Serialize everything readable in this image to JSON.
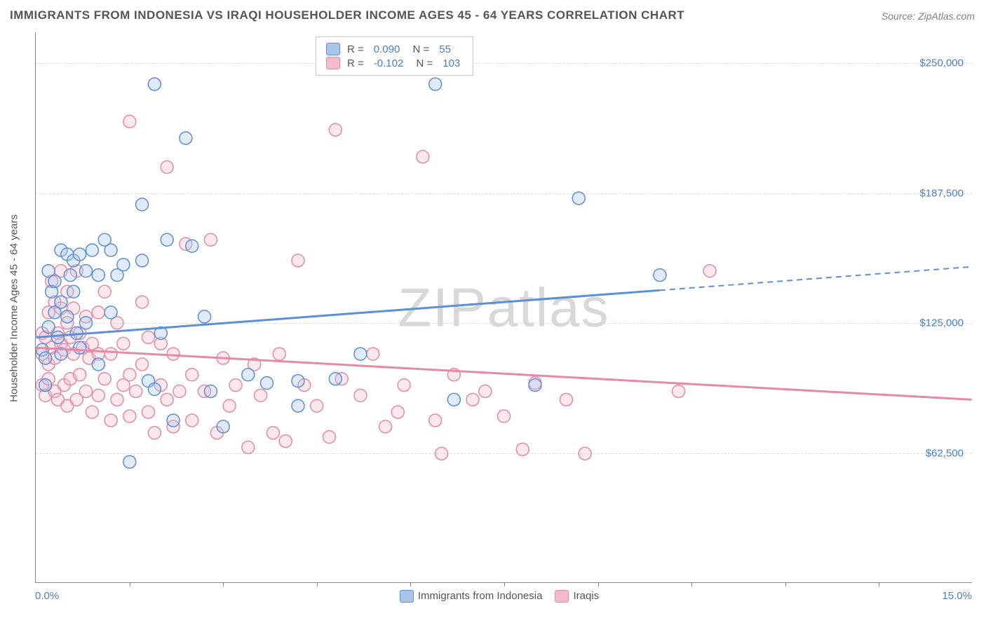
{
  "title": "IMMIGRANTS FROM INDONESIA VS IRAQI HOUSEHOLDER INCOME AGES 45 - 64 YEARS CORRELATION CHART",
  "source": "Source: ZipAtlas.com",
  "watermark": "ZIPatlas",
  "chart": {
    "type": "scatter",
    "y_axis": {
      "label": "Householder Income Ages 45 - 64 years",
      "min": 0,
      "max": 265000,
      "ticks": [
        62500,
        125000,
        187500,
        250000
      ],
      "tick_labels": [
        "$62,500",
        "$125,000",
        "$187,500",
        "$250,000"
      ],
      "label_color": "#4a7ec8",
      "label_fontsize": 15
    },
    "x_axis": {
      "min": 0,
      "max": 15.0,
      "min_label": "0.0%",
      "max_label": "15.0%",
      "tick_positions": [
        1.5,
        3.0,
        4.5,
        6.0,
        7.5,
        9.0,
        10.5,
        12.0,
        13.5
      ],
      "label_color": "#4a7ec8"
    },
    "grid_color": "#dddddd",
    "background_color": "#ffffff",
    "marker_radius": 9,
    "marker_stroke_width": 1.5,
    "marker_fill_opacity": 0.35,
    "series": [
      {
        "name": "Immigrants from Indonesia",
        "stroke": "#5b8fd6",
        "fill": "#a9c5ea",
        "R": "0.090",
        "N": "55",
        "trend": {
          "y_at_xmin": 118000,
          "y_at_xmax": 152000,
          "solid_until_x": 10.0
        },
        "points": [
          [
            0.1,
            112000
          ],
          [
            0.15,
            95000
          ],
          [
            0.15,
            108000
          ],
          [
            0.2,
            123000
          ],
          [
            0.2,
            150000
          ],
          [
            0.25,
            140000
          ],
          [
            0.3,
            130000
          ],
          [
            0.3,
            145000
          ],
          [
            0.35,
            118000
          ],
          [
            0.4,
            160000
          ],
          [
            0.4,
            135000
          ],
          [
            0.4,
            110000
          ],
          [
            0.5,
            158000
          ],
          [
            0.5,
            128000
          ],
          [
            0.55,
            148000
          ],
          [
            0.6,
            155000
          ],
          [
            0.6,
            140000
          ],
          [
            0.65,
            120000
          ],
          [
            0.7,
            158000
          ],
          [
            0.7,
            113000
          ],
          [
            0.8,
            150000
          ],
          [
            0.8,
            125000
          ],
          [
            0.9,
            160000
          ],
          [
            1.0,
            148000
          ],
          [
            1.0,
            105000
          ],
          [
            1.1,
            165000
          ],
          [
            1.2,
            160000
          ],
          [
            1.2,
            130000
          ],
          [
            1.3,
            148000
          ],
          [
            1.4,
            153000
          ],
          [
            1.5,
            58000
          ],
          [
            1.7,
            182000
          ],
          [
            1.7,
            155000
          ],
          [
            1.8,
            97000
          ],
          [
            1.9,
            240000
          ],
          [
            1.9,
            93000
          ],
          [
            2.0,
            120000
          ],
          [
            2.1,
            165000
          ],
          [
            2.2,
            78000
          ],
          [
            2.4,
            214000
          ],
          [
            2.5,
            162000
          ],
          [
            2.7,
            128000
          ],
          [
            2.8,
            92000
          ],
          [
            3.0,
            75000
          ],
          [
            3.4,
            100000
          ],
          [
            3.7,
            96000
          ],
          [
            4.2,
            97000
          ],
          [
            4.2,
            85000
          ],
          [
            4.8,
            98000
          ],
          [
            5.2,
            110000
          ],
          [
            6.4,
            240000
          ],
          [
            6.7,
            88000
          ],
          [
            8.0,
            95000
          ],
          [
            8.7,
            185000
          ],
          [
            10.0,
            148000
          ]
        ]
      },
      {
        "name": "Iraqis",
        "stroke": "#e48aa5",
        "fill": "#f4bccb",
        "R": "-0.102",
        "N": "103",
        "trend": {
          "y_at_xmin": 113000,
          "y_at_xmax": 88000,
          "solid_until_x": 15.0
        },
        "points": [
          [
            0.1,
            110000
          ],
          [
            0.1,
            95000
          ],
          [
            0.1,
            120000
          ],
          [
            0.15,
            118000
          ],
          [
            0.15,
            90000
          ],
          [
            0.2,
            130000
          ],
          [
            0.2,
            105000
          ],
          [
            0.2,
            98000
          ],
          [
            0.25,
            113000
          ],
          [
            0.25,
            145000
          ],
          [
            0.3,
            92000
          ],
          [
            0.3,
            108000
          ],
          [
            0.3,
            135000
          ],
          [
            0.35,
            120000
          ],
          [
            0.35,
            88000
          ],
          [
            0.4,
            115000
          ],
          [
            0.4,
            132000
          ],
          [
            0.4,
            150000
          ],
          [
            0.45,
            95000
          ],
          [
            0.45,
            112000
          ],
          [
            0.5,
            125000
          ],
          [
            0.5,
            140000
          ],
          [
            0.5,
            85000
          ],
          [
            0.55,
            118000
          ],
          [
            0.55,
            98000
          ],
          [
            0.6,
            110000
          ],
          [
            0.6,
            132000
          ],
          [
            0.65,
            88000
          ],
          [
            0.65,
            150000
          ],
          [
            0.7,
            120000
          ],
          [
            0.7,
            100000
          ],
          [
            0.75,
            113000
          ],
          [
            0.8,
            92000
          ],
          [
            0.8,
            128000
          ],
          [
            0.85,
            108000
          ],
          [
            0.9,
            115000
          ],
          [
            0.9,
            82000
          ],
          [
            1.0,
            130000
          ],
          [
            1.0,
            110000
          ],
          [
            1.0,
            90000
          ],
          [
            1.1,
            98000
          ],
          [
            1.1,
            140000
          ],
          [
            1.2,
            78000
          ],
          [
            1.2,
            110000
          ],
          [
            1.3,
            125000
          ],
          [
            1.3,
            88000
          ],
          [
            1.4,
            115000
          ],
          [
            1.4,
            95000
          ],
          [
            1.5,
            100000
          ],
          [
            1.5,
            80000
          ],
          [
            1.5,
            222000
          ],
          [
            1.6,
            92000
          ],
          [
            1.7,
            135000
          ],
          [
            1.7,
            105000
          ],
          [
            1.8,
            82000
          ],
          [
            1.8,
            118000
          ],
          [
            1.9,
            72000
          ],
          [
            2.0,
            115000
          ],
          [
            2.0,
            95000
          ],
          [
            2.1,
            88000
          ],
          [
            2.1,
            200000
          ],
          [
            2.2,
            75000
          ],
          [
            2.2,
            110000
          ],
          [
            2.3,
            92000
          ],
          [
            2.4,
            163000
          ],
          [
            2.5,
            78000
          ],
          [
            2.5,
            100000
          ],
          [
            2.7,
            92000
          ],
          [
            2.8,
            165000
          ],
          [
            2.9,
            72000
          ],
          [
            3.0,
            108000
          ],
          [
            3.1,
            85000
          ],
          [
            3.2,
            95000
          ],
          [
            3.4,
            65000
          ],
          [
            3.5,
            105000
          ],
          [
            3.6,
            90000
          ],
          [
            3.8,
            72000
          ],
          [
            3.9,
            110000
          ],
          [
            4.0,
            68000
          ],
          [
            4.2,
            155000
          ],
          [
            4.3,
            95000
          ],
          [
            4.5,
            85000
          ],
          [
            4.7,
            70000
          ],
          [
            4.8,
            218000
          ],
          [
            4.9,
            98000
          ],
          [
            5.2,
            90000
          ],
          [
            5.4,
            110000
          ],
          [
            5.6,
            75000
          ],
          [
            5.8,
            82000
          ],
          [
            5.9,
            95000
          ],
          [
            6.2,
            205000
          ],
          [
            6.4,
            78000
          ],
          [
            6.5,
            62000
          ],
          [
            6.7,
            100000
          ],
          [
            7.0,
            88000
          ],
          [
            7.2,
            92000
          ],
          [
            7.5,
            80000
          ],
          [
            7.8,
            64000
          ],
          [
            8.0,
            96000
          ],
          [
            8.5,
            88000
          ],
          [
            8.8,
            62000
          ],
          [
            10.3,
            92000
          ],
          [
            10.8,
            150000
          ]
        ]
      }
    ],
    "legend_bottom": [
      {
        "label": "Immigrants from Indonesia",
        "fill": "#a9c5ea",
        "stroke": "#5b8fd6"
      },
      {
        "label": "Iraqis",
        "fill": "#f4bccb",
        "stroke": "#e48aa5"
      }
    ]
  }
}
